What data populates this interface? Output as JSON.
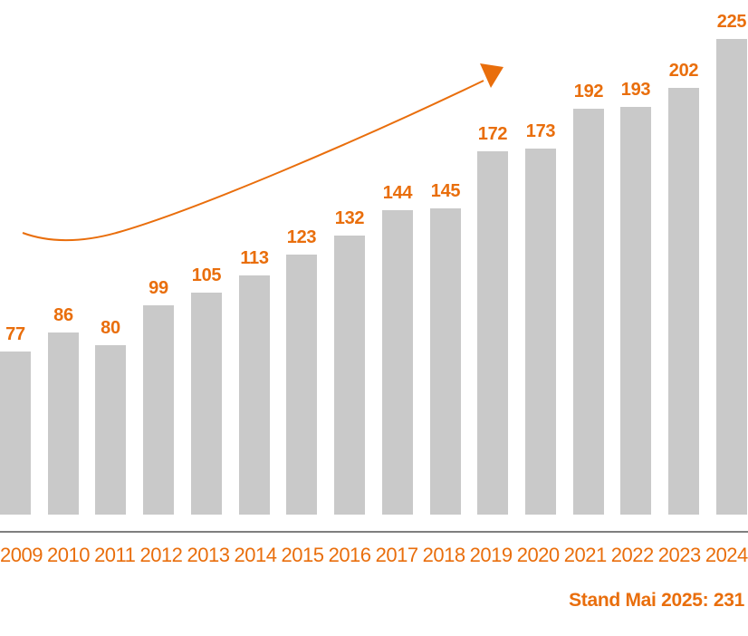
{
  "chart_data": {
    "type": "bar",
    "title": "",
    "xlabel": "",
    "ylabel": "",
    "categories": [
      "2009",
      "2010",
      "2011",
      "2012",
      "2013",
      "2014",
      "2015",
      "2016",
      "2017",
      "2018",
      "2019",
      "2020",
      "2021",
      "2022",
      "2023",
      "2024"
    ],
    "values": [
      77,
      86,
      80,
      99,
      105,
      113,
      123,
      132,
      144,
      145,
      172,
      173,
      192,
      193,
      202,
      225
    ],
    "ylim": [
      0,
      243
    ],
    "grid": false,
    "legend": false,
    "bar_color": "#c9c9c9",
    "label_color": "#e96e0c",
    "axis_color": "#7f7f7f",
    "annotation": "upward-trend-arrow",
    "footnote": "Stand Mai 2025: 231"
  },
  "colors": {
    "accent": "#e96e0c",
    "bar": "#c9c9c9",
    "axis": "#7f7f7f",
    "background": "#ffffff"
  }
}
